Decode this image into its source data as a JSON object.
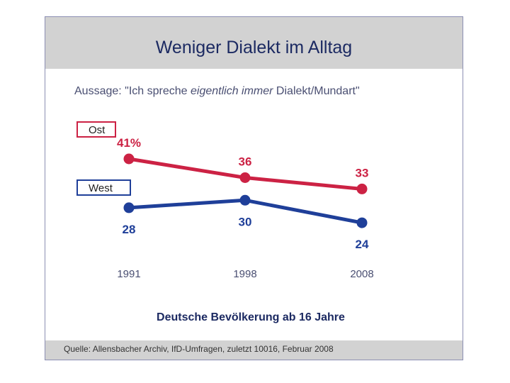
{
  "header": {
    "title": "Weniger Dialekt im Alltag"
  },
  "statement": {
    "prefix": "Aussage: \"Ich spreche ",
    "emphasis": "eigentlich immer",
    "suffix": " Dialekt/Mundart\""
  },
  "legend": {
    "ost": "Ost",
    "west": "West"
  },
  "chart_data": {
    "type": "line",
    "title": "Weniger Dialekt im Alltag",
    "subtitle": "Aussage: \"Ich spreche eigentlich immer Dialekt/Mundart\"",
    "categories": [
      "1991",
      "1998",
      "2008"
    ],
    "series": [
      {
        "name": "Ost",
        "color": "#cc2244",
        "values": [
          41,
          36,
          33
        ],
        "labels": [
          "41%",
          "36",
          "33"
        ],
        "label_position": "above"
      },
      {
        "name": "West",
        "color": "#1f3f99",
        "values": [
          28,
          30,
          24
        ],
        "labels": [
          "28",
          "30",
          "24"
        ],
        "label_position": "below"
      }
    ],
    "xlabel": "Deutsche Bevölkerung ab 16 Jahre",
    "ylabel": "",
    "ylim": [
      20,
      45
    ],
    "grid": false,
    "legend": "left"
  },
  "footer": {
    "source": "Quelle: Allensbacher Archiv, IfD-Umfragen, zuletzt 10016, Februar 2008"
  }
}
